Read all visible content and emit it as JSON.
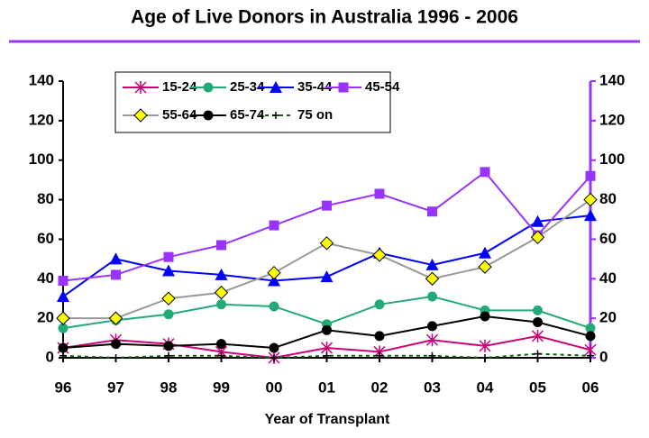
{
  "chart_data": {
    "type": "line",
    "title": "Age of Live Donors in Australia  1996 - 2006",
    "x_label": "Year of Transplant",
    "categories": [
      "96",
      "97",
      "98",
      "99",
      "00",
      "01",
      "02",
      "03",
      "04",
      "05",
      "06"
    ],
    "series": [
      {
        "name": "15-24",
        "color": "#cc0077",
        "marker": "asterisk",
        "values": [
          5,
          9,
          7,
          3,
          0,
          5,
          3,
          9,
          6,
          11,
          4
        ]
      },
      {
        "name": "25-34",
        "color": "#22aa77",
        "marker": "circle",
        "values": [
          15,
          19,
          22,
          27,
          26,
          17,
          27,
          31,
          24,
          24,
          15
        ]
      },
      {
        "name": "35-44",
        "color": "#0000ff",
        "marker": "triangle",
        "values": [
          31,
          50,
          44,
          42,
          39,
          41,
          53,
          47,
          53,
          69,
          72
        ]
      },
      {
        "name": "45-54",
        "color": "#9933ff",
        "marker": "square",
        "values": [
          39,
          42,
          51,
          57,
          67,
          77,
          83,
          74,
          94,
          62,
          92
        ]
      },
      {
        "name": "55-64",
        "color": "#999999",
        "marker": "diamond",
        "values": [
          20,
          20,
          30,
          33,
          43,
          58,
          52,
          40,
          46,
          61,
          80
        ]
      },
      {
        "name": "65-74",
        "color": "#000000",
        "marker": "circle",
        "values": [
          5,
          7,
          6,
          7,
          5,
          14,
          11,
          16,
          21,
          18,
          11
        ]
      },
      {
        "name": "75 on",
        "color": "#006600",
        "marker": "plus",
        "dashed": true,
        "values": [
          1,
          0,
          1,
          1,
          0,
          1,
          1,
          1,
          0,
          2,
          1
        ]
      }
    ],
    "ylim": [
      0,
      140
    ],
    "yticks": [
      0,
      20,
      40,
      60,
      80,
      100,
      120,
      140
    ],
    "y2lim": [
      0,
      140
    ],
    "y2ticks": [
      0,
      20,
      40,
      60,
      80,
      100,
      120,
      140
    ]
  }
}
